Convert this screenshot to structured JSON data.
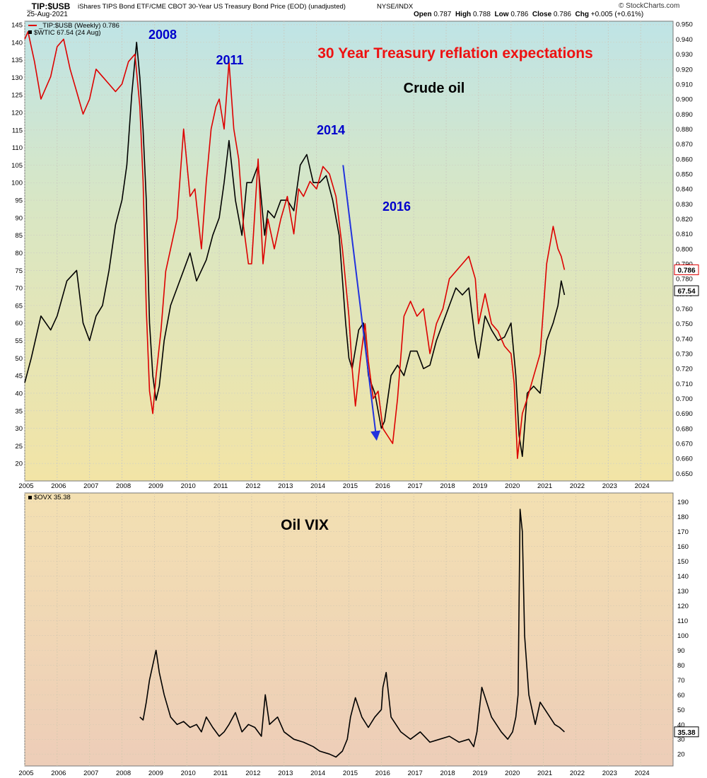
{
  "header": {
    "symbol": "_TIP:$USB",
    "description": "iShares TIPS Bond ETF/CME CBOT 30-Year US Treasury Bond Price (EOD) (unadjusted)",
    "exchange": "NYSE/INDX",
    "date": "25-Aug-2021",
    "ohlc": [
      {
        "label": "Open",
        "value": "0.787"
      },
      {
        "label": "High",
        "value": "0.788"
      },
      {
        "label": "Low",
        "value": "0.786"
      },
      {
        "label": "Close",
        "value": "0.786"
      },
      {
        "label": "Chg",
        "value": "+0.005 (+0.61%)"
      }
    ],
    "watermark": "© StockCharts.com"
  },
  "colors": {
    "tip_line": "#dd0000",
    "wti_line": "#000000",
    "ovx_line": "#000000",
    "annotation_blue": "#0000cc",
    "annotation_red": "#ee1111",
    "arrow": "#2233dd"
  },
  "chart_data": [
    {
      "type": "line",
      "panel": "top",
      "legend": [
        "_TIP:$USB (Weekly) 0.786",
        "$WTIC 67.54 (24 Aug)"
      ],
      "annotations": {
        "title": "30 Year Treasury reflation expectations",
        "sub": "Crude oil",
        "years": [
          "2008",
          "2011",
          "2014",
          "2016"
        ]
      },
      "x_ticks": [
        "2005",
        "2006",
        "2007",
        "2008",
        "2009",
        "2010",
        "2011",
        "2012",
        "2013",
        "2014",
        "2015",
        "2016",
        "2017",
        "2018",
        "2019",
        "2020",
        "2021",
        "2022",
        "2023",
        "2024"
      ],
      "xlim": [
        2005,
        2025
      ],
      "left_axis": {
        "ylim": [
          15,
          146
        ],
        "ticks": [
          20,
          25,
          30,
          35,
          40,
          45,
          50,
          55,
          60,
          65,
          70,
          75,
          80,
          85,
          90,
          95,
          100,
          105,
          110,
          115,
          120,
          125,
          130,
          135,
          140,
          145
        ]
      },
      "right_axis": {
        "ylim": [
          0.645,
          0.952
        ],
        "ticks": [
          "0.650",
          "0.660",
          "0.670",
          "0.680",
          "0.690",
          "0.700",
          "0.710",
          "0.720",
          "0.730",
          "0.740",
          "0.750",
          "0.760",
          "0.770",
          "0.780",
          "0.790",
          "0.800",
          "0.810",
          "0.820",
          "0.830",
          "0.840",
          "0.850",
          "0.860",
          "0.870",
          "0.880",
          "0.890",
          "0.900",
          "0.910",
          "0.920",
          "0.930",
          "0.940",
          "0.950"
        ]
      },
      "last_labels": {
        "tip": "0.786",
        "wti": "67.54"
      },
      "series": [
        {
          "name": "_TIP:$USB (Weekly)",
          "axis": "right",
          "x": [
            2005.0,
            2005.1,
            2005.3,
            2005.5,
            2005.8,
            2006.0,
            2006.2,
            2006.4,
            2006.6,
            2006.8,
            2007.0,
            2007.2,
            2007.4,
            2007.6,
            2007.8,
            2008.0,
            2008.2,
            2008.4,
            2008.55,
            2008.65,
            2008.75,
            2008.85,
            2008.95,
            2009.05,
            2009.2,
            2009.35,
            2009.5,
            2009.7,
            2009.9,
            2010.1,
            2010.25,
            2010.45,
            2010.6,
            2010.75,
            2010.9,
            2011.0,
            2011.15,
            2011.3,
            2011.45,
            2011.6,
            2011.75,
            2011.9,
            2012.0,
            2012.2,
            2012.35,
            2012.5,
            2012.7,
            2012.9,
            2013.1,
            2013.3,
            2013.45,
            2013.6,
            2013.8,
            2014.0,
            2014.2,
            2014.4,
            2014.6,
            2014.8,
            2015.0,
            2015.1,
            2015.2,
            2015.35,
            2015.5,
            2015.6,
            2015.75,
            2015.9,
            2016.05,
            2016.2,
            2016.35,
            2016.5,
            2016.7,
            2016.9,
            2017.1,
            2017.3,
            2017.5,
            2017.7,
            2017.9,
            2018.1,
            2018.3,
            2018.5,
            2018.7,
            2018.9,
            2019.0,
            2019.2,
            2019.4,
            2019.6,
            2019.8,
            2020.0,
            2020.1,
            2020.2,
            2020.25,
            2020.35,
            2020.5,
            2020.7,
            2020.9,
            2021.1,
            2021.3,
            2021.45,
            2021.55,
            2021.65
          ],
          "values": [
            0.94,
            0.945,
            0.925,
            0.9,
            0.915,
            0.935,
            0.94,
            0.92,
            0.905,
            0.89,
            0.9,
            0.92,
            0.915,
            0.91,
            0.905,
            0.91,
            0.925,
            0.93,
            0.895,
            0.845,
            0.76,
            0.705,
            0.69,
            0.715,
            0.745,
            0.785,
            0.8,
            0.82,
            0.88,
            0.835,
            0.84,
            0.8,
            0.845,
            0.88,
            0.895,
            0.9,
            0.88,
            0.925,
            0.88,
            0.86,
            0.815,
            0.79,
            0.79,
            0.86,
            0.79,
            0.82,
            0.8,
            0.82,
            0.835,
            0.81,
            0.84,
            0.835,
            0.845,
            0.84,
            0.855,
            0.85,
            0.835,
            0.8,
            0.755,
            0.72,
            0.695,
            0.725,
            0.75,
            0.725,
            0.7,
            0.705,
            0.68,
            0.675,
            0.67,
            0.7,
            0.755,
            0.765,
            0.755,
            0.76,
            0.73,
            0.75,
            0.76,
            0.78,
            0.785,
            0.79,
            0.795,
            0.78,
            0.75,
            0.77,
            0.75,
            0.745,
            0.735,
            0.73,
            0.71,
            0.66,
            0.67,
            0.69,
            0.7,
            0.715,
            0.73,
            0.79,
            0.815,
            0.8,
            0.795,
            0.786
          ]
        },
        {
          "name": "$WTIC",
          "axis": "left",
          "x": [
            2005.0,
            2005.2,
            2005.5,
            2005.8,
            2006.0,
            2006.3,
            2006.6,
            2006.8,
            2007.0,
            2007.2,
            2007.4,
            2007.6,
            2007.8,
            2008.0,
            2008.15,
            2008.3,
            2008.45,
            2008.55,
            2008.65,
            2008.75,
            2008.85,
            2008.95,
            2009.05,
            2009.15,
            2009.3,
            2009.5,
            2009.7,
            2009.9,
            2010.1,
            2010.3,
            2010.45,
            2010.6,
            2010.8,
            2011.0,
            2011.15,
            2011.3,
            2011.5,
            2011.7,
            2011.85,
            2012.0,
            2012.2,
            2012.4,
            2012.5,
            2012.7,
            2012.9,
            2013.1,
            2013.3,
            2013.5,
            2013.7,
            2013.9,
            2014.1,
            2014.3,
            2014.5,
            2014.7,
            2014.9,
            2015.0,
            2015.1,
            2015.3,
            2015.45,
            2015.6,
            2015.8,
            2016.0,
            2016.1,
            2016.3,
            2016.5,
            2016.7,
            2016.9,
            2017.1,
            2017.3,
            2017.5,
            2017.7,
            2017.9,
            2018.1,
            2018.3,
            2018.5,
            2018.7,
            2018.9,
            2019.0,
            2019.2,
            2019.4,
            2019.6,
            2019.8,
            2020.0,
            2020.15,
            2020.25,
            2020.35,
            2020.5,
            2020.7,
            2020.9,
            2021.1,
            2021.3,
            2021.45,
            2021.55,
            2021.65
          ],
          "values": [
            43,
            50,
            62,
            58,
            62,
            72,
            75,
            60,
            55,
            62,
            65,
            75,
            88,
            95,
            105,
            125,
            140,
            130,
            115,
            95,
            60,
            45,
            38,
            42,
            55,
            65,
            70,
            75,
            80,
            72,
            75,
            78,
            85,
            90,
            100,
            112,
            95,
            85,
            100,
            100,
            105,
            85,
            92,
            90,
            95,
            95,
            92,
            105,
            108,
            100,
            100,
            102,
            95,
            85,
            60,
            50,
            47,
            58,
            60,
            45,
            40,
            30,
            32,
            45,
            48,
            45,
            52,
            52,
            47,
            48,
            55,
            60,
            65,
            70,
            68,
            70,
            55,
            50,
            62,
            58,
            55,
            56,
            60,
            45,
            28,
            22,
            40,
            42,
            40,
            55,
            60,
            65,
            72,
            68
          ]
        }
      ]
    },
    {
      "type": "line",
      "panel": "bottom",
      "legend": [
        "$OVX 35.38"
      ],
      "annotations": {
        "title": "Oil VIX"
      },
      "x_ticks": [
        "2005",
        "2006",
        "2007",
        "2008",
        "2009",
        "2010",
        "2011",
        "2012",
        "2013",
        "2014",
        "2015",
        "2016",
        "2017",
        "2018",
        "2019",
        "2020",
        "2021",
        "2022",
        "2023",
        "2024"
      ],
      "xlim": [
        2005,
        2025
      ],
      "right_axis": {
        "ylim": [
          12,
          196
        ],
        "ticks": [
          "20",
          "30",
          "40",
          "50",
          "60",
          "70",
          "80",
          "90",
          "100",
          "110",
          "120",
          "130",
          "140",
          "150",
          "160",
          "170",
          "180",
          "190"
        ]
      },
      "last_labels": {
        "ovx": "35.38"
      },
      "series": [
        {
          "name": "$OVX",
          "axis": "right",
          "x": [
            2008.55,
            2008.65,
            2008.75,
            2008.85,
            2008.95,
            2009.05,
            2009.15,
            2009.3,
            2009.5,
            2009.7,
            2009.9,
            2010.1,
            2010.3,
            2010.45,
            2010.6,
            2010.8,
            2011.0,
            2011.15,
            2011.3,
            2011.5,
            2011.7,
            2011.9,
            2012.1,
            2012.3,
            2012.42,
            2012.55,
            2012.8,
            2013.0,
            2013.3,
            2013.6,
            2013.9,
            2014.1,
            2014.4,
            2014.6,
            2014.8,
            2014.95,
            2015.05,
            2015.2,
            2015.4,
            2015.6,
            2015.8,
            2016.0,
            2016.05,
            2016.15,
            2016.3,
            2016.6,
            2016.9,
            2017.2,
            2017.5,
            2017.8,
            2018.1,
            2018.4,
            2018.7,
            2018.85,
            2018.95,
            2019.1,
            2019.4,
            2019.7,
            2019.9,
            2020.05,
            2020.15,
            2020.22,
            2020.28,
            2020.35,
            2020.42,
            2020.55,
            2020.75,
            2020.9,
            2021.05,
            2021.2,
            2021.35,
            2021.5,
            2021.65
          ],
          "values": [
            45,
            43,
            55,
            70,
            80,
            90,
            75,
            60,
            45,
            40,
            42,
            38,
            40,
            35,
            45,
            38,
            32,
            35,
            40,
            48,
            35,
            40,
            38,
            32,
            60,
            40,
            45,
            35,
            30,
            28,
            25,
            22,
            20,
            18,
            22,
            30,
            45,
            58,
            45,
            38,
            45,
            50,
            65,
            75,
            45,
            35,
            30,
            35,
            28,
            30,
            32,
            28,
            30,
            25,
            35,
            65,
            45,
            35,
            30,
            35,
            45,
            60,
            185,
            170,
            100,
            60,
            40,
            55,
            50,
            45,
            40,
            38,
            35
          ]
        }
      ]
    }
  ]
}
